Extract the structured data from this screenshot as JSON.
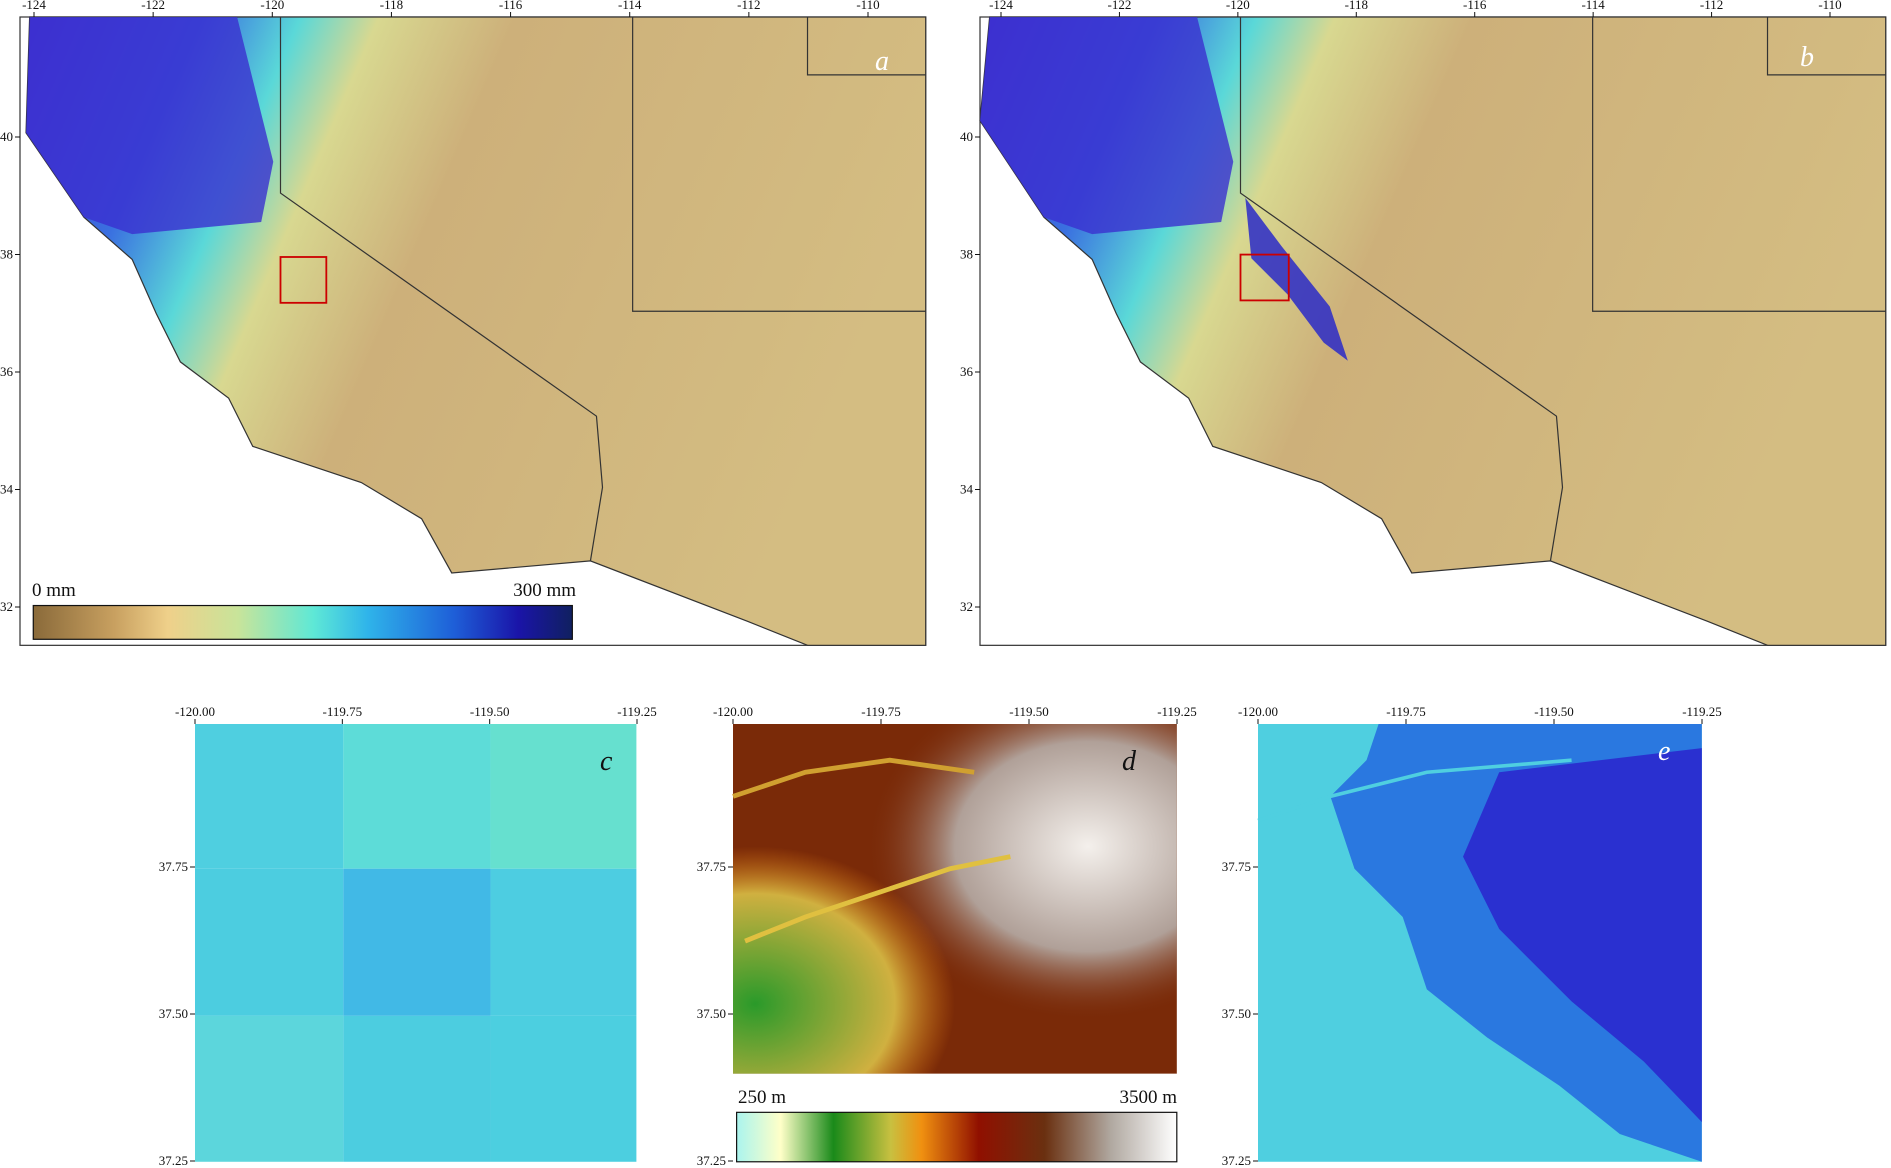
{
  "panels": [
    {
      "letter": "a",
      "xticks": [
        "-124",
        "-122",
        "-120",
        "-118",
        "-116",
        "-114",
        "-112",
        "-110"
      ],
      "yticks": [
        "40",
        "38",
        "36",
        "34",
        "32"
      ]
    },
    {
      "letter": "b",
      "xticks": [
        "-124",
        "-122",
        "-120",
        "-118",
        "-116",
        "-114",
        "-112",
        "-110"
      ],
      "yticks": [
        "40",
        "38",
        "36",
        "34",
        "32"
      ]
    },
    {
      "letter": "c",
      "xticks": [
        "-120.00",
        "-119.75",
        "-119.50",
        "-119.25"
      ],
      "yticks": [
        "37.75",
        "37.50",
        "37.25"
      ]
    },
    {
      "letter": "d",
      "xticks": [
        "-120.00",
        "-119.75",
        "-119.50",
        "-119.25"
      ],
      "yticks": [
        "37.75",
        "37.50",
        "37.25"
      ]
    },
    {
      "letter": "e",
      "xticks": [
        "-120.00",
        "-119.75",
        "-119.50",
        "-119.25"
      ],
      "yticks": [
        "37.75",
        "37.50",
        "37.25"
      ]
    }
  ],
  "precip_colorbar": {
    "min_label": "0 mm",
    "max_label": "300 mm"
  },
  "elevation_colorbar": {
    "min_label": "250 m",
    "max_label": "3500 m"
  }
}
